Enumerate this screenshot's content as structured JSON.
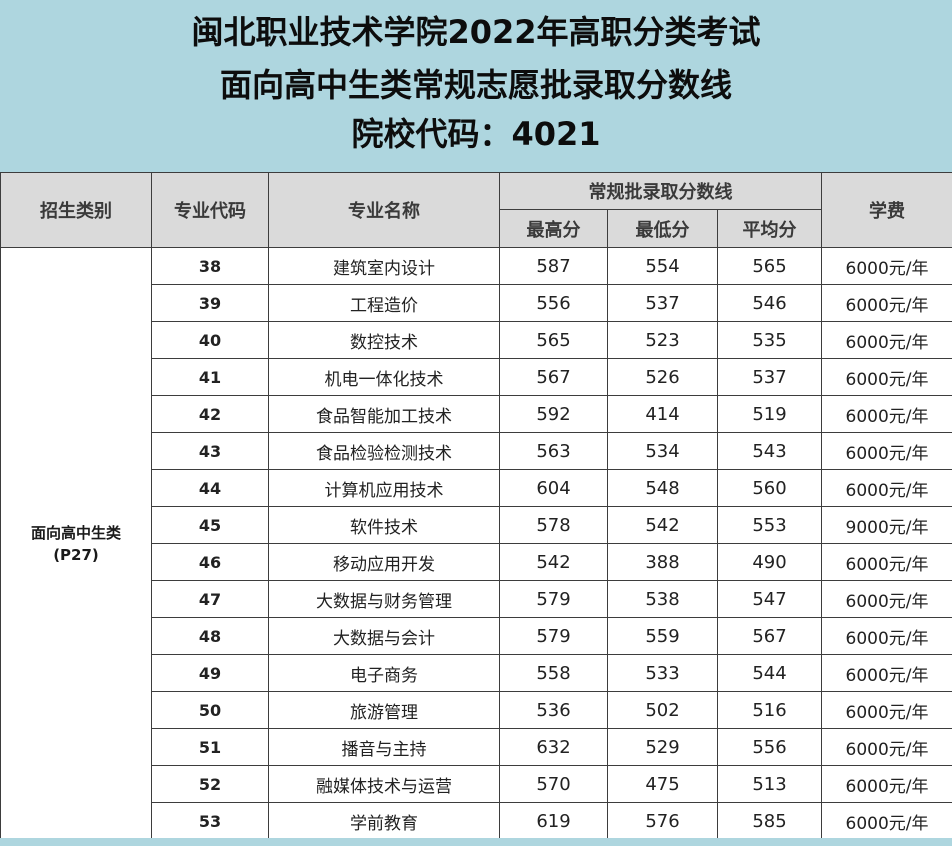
{
  "title": {
    "line1": "闽北职业技术学院2022年高职分类考试",
    "line2": "面向高中生类常规志愿批录取分数线",
    "line3": "院校代码：4021"
  },
  "table": {
    "headers": {
      "category": "招生类别",
      "code": "专业代码",
      "name": "专业名称",
      "score_group": "常规批录取分数线",
      "max": "最高分",
      "min": "最低分",
      "avg": "平均分",
      "fee": "学费"
    },
    "category_label": "面向高中生类",
    "category_page": "(P27)",
    "rows": [
      {
        "code": "38",
        "name": "建筑室内设计",
        "max": "587",
        "min": "554",
        "avg": "565",
        "fee": "6000元/年"
      },
      {
        "code": "39",
        "name": "工程造价",
        "max": "556",
        "min": "537",
        "avg": "546",
        "fee": "6000元/年"
      },
      {
        "code": "40",
        "name": "数控技术",
        "max": "565",
        "min": "523",
        "avg": "535",
        "fee": "6000元/年"
      },
      {
        "code": "41",
        "name": "机电一体化技术",
        "max": "567",
        "min": "526",
        "avg": "537",
        "fee": "6000元/年"
      },
      {
        "code": "42",
        "name": "食品智能加工技术",
        "max": "592",
        "min": "414",
        "avg": "519",
        "fee": "6000元/年"
      },
      {
        "code": "43",
        "name": "食品检验检测技术",
        "max": "563",
        "min": "534",
        "avg": "543",
        "fee": "6000元/年"
      },
      {
        "code": "44",
        "name": "计算机应用技术",
        "max": "604",
        "min": "548",
        "avg": "560",
        "fee": "6000元/年"
      },
      {
        "code": "45",
        "name": "软件技术",
        "max": "578",
        "min": "542",
        "avg": "553",
        "fee": "9000元/年"
      },
      {
        "code": "46",
        "name": "移动应用开发",
        "max": "542",
        "min": "388",
        "avg": "490",
        "fee": "6000元/年"
      },
      {
        "code": "47",
        "name": "大数据与财务管理",
        "max": "579",
        "min": "538",
        "avg": "547",
        "fee": "6000元/年"
      },
      {
        "code": "48",
        "name": "大数据与会计",
        "max": "579",
        "min": "559",
        "avg": "567",
        "fee": "6000元/年"
      },
      {
        "code": "49",
        "name": "电子商务",
        "max": "558",
        "min": "533",
        "avg": "544",
        "fee": "6000元/年"
      },
      {
        "code": "50",
        "name": "旅游管理",
        "max": "536",
        "min": "502",
        "avg": "516",
        "fee": "6000元/年"
      },
      {
        "code": "51",
        "name": "播音与主持",
        "max": "632",
        "min": "529",
        "avg": "556",
        "fee": "6000元/年"
      },
      {
        "code": "52",
        "name": "融媒体技术与运营",
        "max": "570",
        "min": "475",
        "avg": "513",
        "fee": "6000元/年"
      },
      {
        "code": "53",
        "name": "学前教育",
        "max": "619",
        "min": "576",
        "avg": "585",
        "fee": "6000元/年"
      }
    ]
  }
}
